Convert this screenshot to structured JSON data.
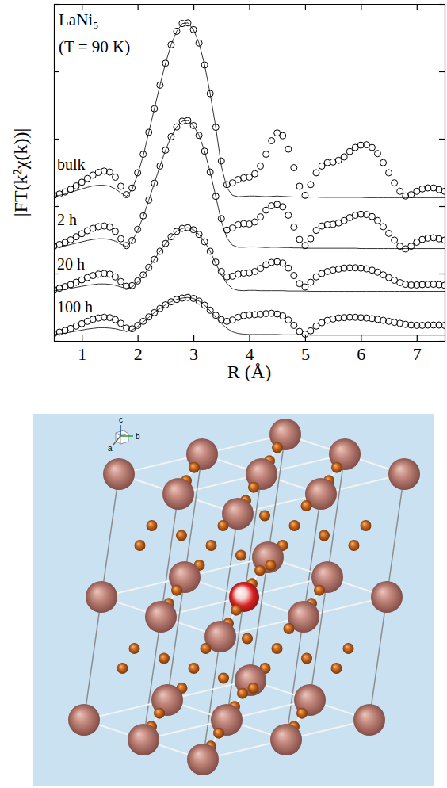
{
  "chart_data": {
    "type": "scatter",
    "annotations": [
      "LaNi₅",
      "(T = 90 K)"
    ],
    "x_label": "R (Å)",
    "y_label": "|FT(k²χ(k))|",
    "xlim": [
      0.5,
      7.5
    ],
    "xticks": [
      1,
      2,
      3,
      4,
      5,
      6,
      7
    ],
    "ylim": [
      0,
      10
    ],
    "yticks": [
      0,
      2,
      4,
      6,
      8,
      10
    ],
    "tick_labels": "x",
    "marker": "circle",
    "line_style": "solid",
    "x": [
      0.5,
      0.6,
      0.7,
      0.8,
      0.9,
      1.0,
      1.1,
      1.2,
      1.3,
      1.4,
      1.5,
      1.6,
      1.7,
      1.8,
      1.9,
      2.0,
      2.1,
      2.2,
      2.3,
      2.4,
      2.5,
      2.6,
      2.7,
      2.8,
      2.9,
      3.0,
      3.1,
      3.2,
      3.3,
      3.4,
      3.5,
      3.6,
      3.7,
      3.8,
      3.9,
      4.0,
      4.1,
      4.2,
      4.3,
      4.4,
      4.5,
      4.6,
      4.7,
      4.8,
      4.9,
      5.0,
      5.1,
      5.2,
      5.3,
      5.4,
      5.5,
      5.6,
      5.7,
      5.8,
      5.9,
      6.0,
      6.1,
      6.2,
      6.3,
      6.4,
      6.5,
      6.6,
      6.7,
      6.8,
      6.9,
      7.0,
      7.1,
      7.2,
      7.3,
      7.4,
      7.5
    ],
    "series": [
      {
        "name": "bulk",
        "color": "#000000",
        "values": [
          4.32,
          4.36,
          4.42,
          4.5,
          4.6,
          4.71,
          4.82,
          4.92,
          5.0,
          5.04,
          5.01,
          4.86,
          4.59,
          4.34,
          4.54,
          4.99,
          5.54,
          6.19,
          6.89,
          7.59,
          8.24,
          8.79,
          9.19,
          9.42,
          9.44,
          9.24,
          8.84,
          8.19,
          7.34,
          6.34,
          5.34,
          4.64,
          4.69,
          4.79,
          4.84,
          4.86,
          4.96,
          5.19,
          5.54,
          5.94,
          6.17,
          6.09,
          5.69,
          5.14,
          4.59,
          4.32,
          4.64,
          4.99,
          5.19,
          5.29,
          5.31,
          5.36,
          5.46,
          5.62,
          5.74,
          5.81,
          5.82,
          5.74,
          5.56,
          5.29,
          4.99,
          4.69,
          4.44,
          4.3,
          4.34,
          4.44,
          4.51,
          4.54,
          4.54,
          4.49,
          4.44
        ],
        "fit": [
          4.29,
          4.32,
          4.36,
          4.41,
          4.46,
          4.51,
          4.56,
          4.6,
          4.62,
          4.62,
          4.59,
          4.51,
          4.39,
          4.29,
          4.49,
          4.94,
          5.49,
          6.19,
          6.89,
          7.59,
          8.24,
          8.79,
          9.19,
          9.42,
          9.44,
          9.24,
          8.84,
          8.19,
          7.34,
          6.34,
          5.19,
          4.54,
          4.32,
          4.28,
          4.29,
          4.3,
          4.3,
          4.29,
          4.28,
          4.29,
          4.3,
          4.29,
          4.28,
          4.27,
          4.27,
          4.26,
          4.27,
          4.27,
          4.26,
          4.26,
          4.26,
          4.26,
          4.26,
          4.26,
          4.26,
          4.26,
          4.25,
          4.25,
          4.25,
          4.25,
          4.25,
          4.25,
          4.25,
          4.25,
          4.25,
          4.25,
          4.25,
          4.25,
          4.25,
          4.25,
          4.25
        ]
      },
      {
        "name": "2 h",
        "color": "#000000",
        "values": [
          2.81,
          2.86,
          2.92,
          3.0,
          3.09,
          3.18,
          3.27,
          3.34,
          3.39,
          3.41,
          3.38,
          3.25,
          3.03,
          2.83,
          2.98,
          3.31,
          3.71,
          4.18,
          4.68,
          5.19,
          5.66,
          6.06,
          6.35,
          6.52,
          6.54,
          6.39,
          6.1,
          5.63,
          5.01,
          4.29,
          3.63,
          3.29,
          3.35,
          3.45,
          3.48,
          3.47,
          3.53,
          3.68,
          3.88,
          4.01,
          4.05,
          3.98,
          3.73,
          3.38,
          3.01,
          2.83,
          3.03,
          3.28,
          3.41,
          3.45,
          3.46,
          3.5,
          3.57,
          3.66,
          3.73,
          3.76,
          3.75,
          3.69,
          3.57,
          3.39,
          3.19,
          2.99,
          2.81,
          2.73,
          2.81,
          2.93,
          3.01,
          3.05,
          3.06,
          3.03,
          2.99
        ],
        "fit": [
          2.77,
          2.79,
          2.82,
          2.86,
          2.9,
          2.94,
          2.98,
          3.01,
          3.03,
          3.03,
          3.01,
          2.96,
          2.87,
          2.8,
          2.95,
          3.28,
          3.68,
          4.18,
          4.68,
          5.19,
          5.66,
          6.06,
          6.35,
          6.52,
          6.54,
          6.39,
          6.1,
          5.63,
          5.01,
          4.29,
          3.55,
          3.05,
          2.84,
          2.78,
          2.78,
          2.79,
          2.79,
          2.78,
          2.77,
          2.78,
          2.78,
          2.77,
          2.77,
          2.76,
          2.76,
          2.75,
          2.75,
          2.75,
          2.75,
          2.75,
          2.75,
          2.75,
          2.75,
          2.75,
          2.75,
          2.74,
          2.74,
          2.74,
          2.74,
          2.74,
          2.74,
          2.74,
          2.74,
          2.74,
          2.74,
          2.74,
          2.74,
          2.74,
          2.74,
          2.74,
          2.74
        ]
      },
      {
        "name": "20 h",
        "color": "#000000",
        "values": [
          1.52,
          1.56,
          1.61,
          1.67,
          1.74,
          1.81,
          1.88,
          1.94,
          1.98,
          2.0,
          1.98,
          1.9,
          1.76,
          1.62,
          1.64,
          1.78,
          1.96,
          2.18,
          2.42,
          2.66,
          2.89,
          3.09,
          3.25,
          3.34,
          3.36,
          3.3,
          3.16,
          2.94,
          2.66,
          2.34,
          2.06,
          1.9,
          1.92,
          1.98,
          2.01,
          2.02,
          2.06,
          2.15,
          2.26,
          2.33,
          2.35,
          2.31,
          2.16,
          1.94,
          1.7,
          1.6,
          1.74,
          1.9,
          2.0,
          2.06,
          2.1,
          2.13,
          2.16,
          2.17,
          2.17,
          2.16,
          2.14,
          2.1,
          2.04,
          1.96,
          1.88,
          1.8,
          1.73,
          1.68,
          1.66,
          1.66,
          1.67,
          1.68,
          1.68,
          1.67,
          1.65
        ],
        "fit": [
          1.49,
          1.51,
          1.53,
          1.56,
          1.59,
          1.62,
          1.65,
          1.67,
          1.69,
          1.69,
          1.68,
          1.65,
          1.6,
          1.56,
          1.6,
          1.74,
          1.93,
          2.16,
          2.42,
          2.66,
          2.89,
          3.09,
          3.25,
          3.34,
          3.36,
          3.3,
          3.16,
          2.94,
          2.66,
          2.3,
          1.96,
          1.7,
          1.55,
          1.5,
          1.49,
          1.5,
          1.5,
          1.49,
          1.49,
          1.49,
          1.49,
          1.49,
          1.48,
          1.48,
          1.48,
          1.48,
          1.47,
          1.47,
          1.47,
          1.47,
          1.47,
          1.47,
          1.47,
          1.47,
          1.47,
          1.47,
          1.47,
          1.47,
          1.47,
          1.47,
          1.47,
          1.47,
          1.47,
          1.47,
          1.47,
          1.47,
          1.47,
          1.47,
          1.47,
          1.47,
          1.47
        ]
      },
      {
        "name": "100 h",
        "color": "#000000",
        "values": [
          0.22,
          0.26,
          0.31,
          0.37,
          0.44,
          0.51,
          0.58,
          0.64,
          0.68,
          0.7,
          0.69,
          0.63,
          0.52,
          0.38,
          0.36,
          0.46,
          0.58,
          0.71,
          0.84,
          0.96,
          1.07,
          1.16,
          1.23,
          1.27,
          1.29,
          1.26,
          1.18,
          1.06,
          0.91,
          0.76,
          0.63,
          0.58,
          0.62,
          0.7,
          0.75,
          0.77,
          0.78,
          0.79,
          0.81,
          0.82,
          0.8,
          0.74,
          0.62,
          0.46,
          0.28,
          0.2,
          0.3,
          0.44,
          0.54,
          0.61,
          0.65,
          0.68,
          0.69,
          0.7,
          0.7,
          0.69,
          0.68,
          0.66,
          0.64,
          0.61,
          0.58,
          0.55,
          0.52,
          0.49,
          0.47,
          0.46,
          0.46,
          0.47,
          0.47,
          0.47,
          0.46
        ],
        "fit": [
          0.19,
          0.21,
          0.23,
          0.26,
          0.29,
          0.32,
          0.35,
          0.37,
          0.39,
          0.39,
          0.38,
          0.36,
          0.32,
          0.28,
          0.32,
          0.43,
          0.56,
          0.7,
          0.84,
          0.96,
          1.07,
          1.16,
          1.23,
          1.27,
          1.29,
          1.26,
          1.18,
          1.06,
          0.89,
          0.7,
          0.52,
          0.37,
          0.27,
          0.22,
          0.2,
          0.19,
          0.19,
          0.19,
          0.19,
          0.19,
          0.19,
          0.18,
          0.18,
          0.18,
          0.18,
          0.18,
          0.17,
          0.17,
          0.17,
          0.17,
          0.17,
          0.17,
          0.17,
          0.17,
          0.17,
          0.17,
          0.17,
          0.17,
          0.17,
          0.17,
          0.17,
          0.17,
          0.17,
          0.17,
          0.17,
          0.17,
          0.17,
          0.17,
          0.17,
          0.17,
          0.17
        ]
      }
    ]
  },
  "diagram": {
    "axis_labels": [
      "c",
      "a",
      "b"
    ]
  }
}
